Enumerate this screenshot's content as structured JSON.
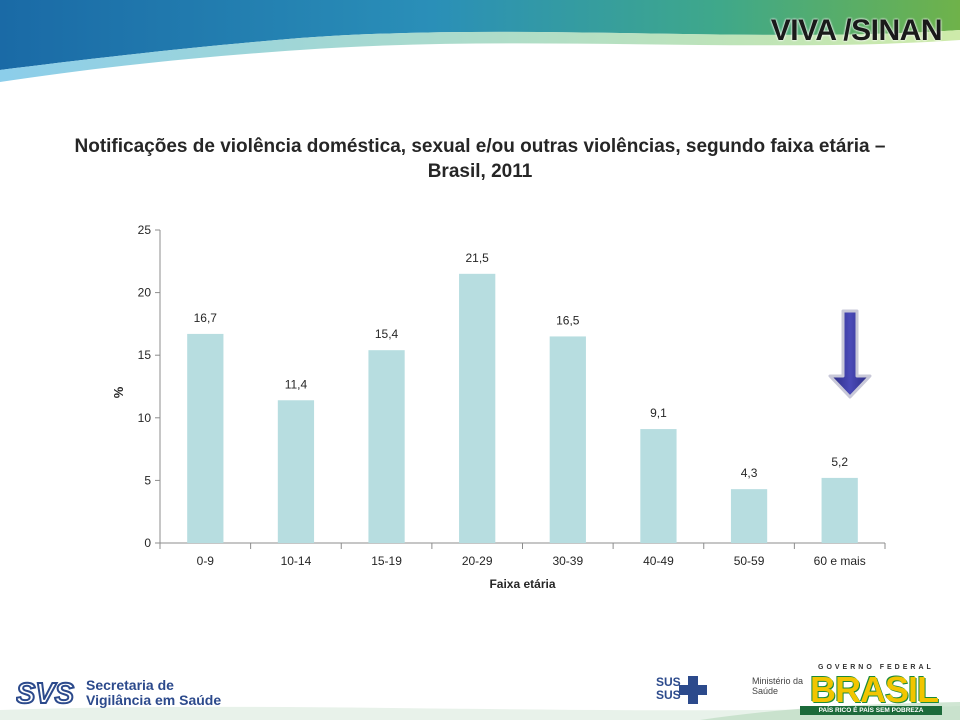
{
  "header": {
    "title": "VIVA /SINAN"
  },
  "chart_data": {
    "type": "bar",
    "title": "Notificações de violência doméstica, sexual e/ou outras violências, segundo faixa etária – Brasil, 2011",
    "xlabel": "Faixa etária",
    "ylabel": "%",
    "ylim": [
      0,
      25
    ],
    "yticks": [
      "0",
      "5",
      "10",
      "15",
      "20",
      "25"
    ],
    "categories": [
      "0-9",
      "10-14",
      "15-19",
      "20-29",
      "30-39",
      "40-49",
      "50-59",
      "60 e mais"
    ],
    "values": [
      16.7,
      11.4,
      15.4,
      21.5,
      16.5,
      9.1,
      4.3,
      5.2
    ],
    "data_labels": [
      "16,7",
      "11,4",
      "15,4",
      "21,5",
      "16,5",
      "9,1",
      "4,3",
      "5,2"
    ],
    "bar_color": "#b7dde0",
    "grid": false,
    "legend": "none",
    "annotation": "down-arrow-icon above 60 e mais"
  },
  "footer": {
    "svs_logo_text": "SVS",
    "svs_line1": "Secretaria de",
    "svs_line2": "Vigilância em Saúde",
    "sus_logo_text": "SUS",
    "ms_line1": "Ministério da",
    "ms_line2": "Saúde",
    "gov_label": "GOVERNO FEDERAL",
    "brasil_word": "BRASIL",
    "slogan": "PAÍS RICO É PAÍS SEM POBREZA"
  },
  "colors": {
    "bar": "#b7dde0",
    "arrow": "#3a3a9e",
    "header_blue": "#1e6ea8",
    "header_green": "#6fb24a",
    "svs_blue": "#2c4a8c"
  }
}
